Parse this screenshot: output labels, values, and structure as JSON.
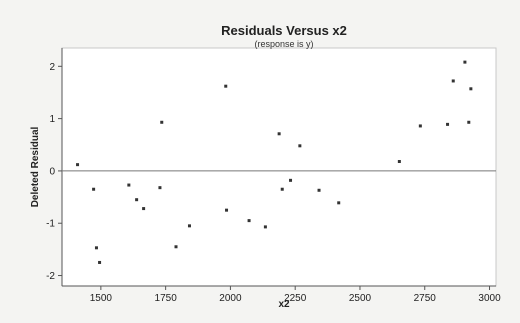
{
  "chart_data": {
    "type": "scatter",
    "title": "Residuals Versus x2",
    "subtitle": "(response is y)",
    "xlabel": "x2",
    "ylabel": "Deleted Residual",
    "xlim": [
      1350,
      3025
    ],
    "ylim": [
      -2.2,
      2.35
    ],
    "x_ticks": [
      1500,
      1750,
      2000,
      2250,
      2500,
      2750,
      3000
    ],
    "y_ticks": [
      -2,
      -1,
      0,
      1,
      2
    ],
    "reference_line_y": 0,
    "grid": false,
    "colors": {
      "background": "#f4f4f2",
      "plot_area": "#ffffff",
      "axis": "#555555",
      "marker": "#333333",
      "reference_line": "#777777"
    },
    "points": [
      {
        "x": 1410,
        "y": 0.12
      },
      {
        "x": 1472,
        "y": -0.35
      },
      {
        "x": 1483,
        "y": -1.47
      },
      {
        "x": 1495,
        "y": -1.75
      },
      {
        "x": 1608,
        "y": -0.27
      },
      {
        "x": 1638,
        "y": -0.55
      },
      {
        "x": 1665,
        "y": -0.72
      },
      {
        "x": 1728,
        "y": -0.32
      },
      {
        "x": 1735,
        "y": 0.93
      },
      {
        "x": 1790,
        "y": -1.45
      },
      {
        "x": 1842,
        "y": -1.05
      },
      {
        "x": 1982,
        "y": 1.62
      },
      {
        "x": 1985,
        "y": -0.75
      },
      {
        "x": 2072,
        "y": -0.95
      },
      {
        "x": 2135,
        "y": -1.07
      },
      {
        "x": 2188,
        "y": 0.71
      },
      {
        "x": 2200,
        "y": -0.35
      },
      {
        "x": 2232,
        "y": -0.18
      },
      {
        "x": 2268,
        "y": 0.48
      },
      {
        "x": 2342,
        "y": -0.37
      },
      {
        "x": 2418,
        "y": -0.61
      },
      {
        "x": 2652,
        "y": 0.18
      },
      {
        "x": 2733,
        "y": 0.86
      },
      {
        "x": 2838,
        "y": 0.89
      },
      {
        "x": 2860,
        "y": 1.72
      },
      {
        "x": 2905,
        "y": 2.08
      },
      {
        "x": 2920,
        "y": 0.93
      },
      {
        "x": 2928,
        "y": 1.57
      }
    ]
  }
}
